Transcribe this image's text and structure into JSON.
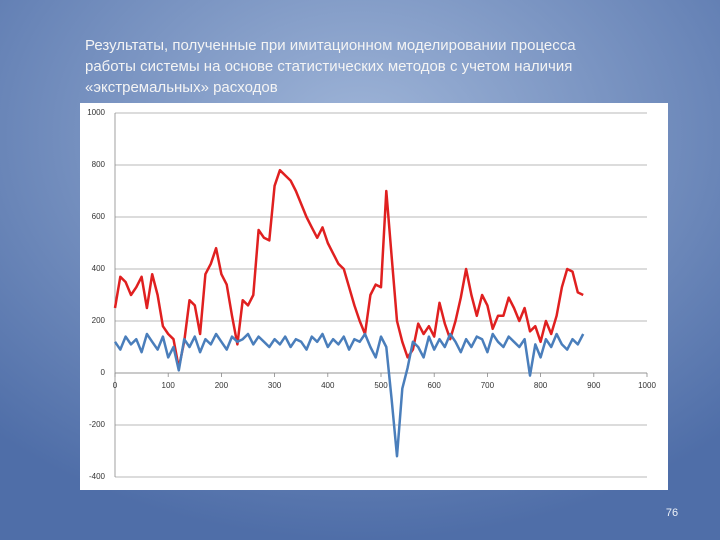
{
  "title": [
    "Результаты, полученные при имитационном моделировании процесса",
    "работы системы на основе статистических методов с учетом наличия",
    "«экстремальных» расходов"
  ],
  "slide_number": "76",
  "chart_data": {
    "type": "line",
    "x": [
      0,
      10,
      20,
      30,
      40,
      50,
      60,
      70,
      80,
      90,
      100,
      110,
      120,
      130,
      140,
      150,
      160,
      170,
      180,
      190,
      200,
      210,
      220,
      230,
      240,
      250,
      260,
      270,
      280,
      290,
      300,
      310,
      320,
      330,
      340,
      350,
      360,
      370,
      380,
      390,
      400,
      410,
      420,
      430,
      440,
      450,
      460,
      470,
      480,
      490,
      500,
      510,
      520,
      530,
      540,
      550,
      560,
      570,
      580,
      590,
      600,
      610,
      620,
      630,
      640,
      650,
      660,
      670,
      680,
      690,
      700,
      710,
      720,
      730,
      740,
      750,
      760,
      770,
      780,
      790,
      800,
      810,
      820,
      830,
      840,
      850,
      860,
      870,
      880
    ],
    "series": [
      {
        "color": "#e02020",
        "values": [
          250,
          370,
          350,
          300,
          330,
          370,
          250,
          380,
          300,
          180,
          150,
          130,
          20,
          120,
          280,
          260,
          150,
          380,
          420,
          480,
          380,
          340,
          220,
          110,
          280,
          260,
          300,
          550,
          520,
          510,
          720,
          780,
          760,
          740,
          700,
          650,
          600,
          560,
          520,
          560,
          500,
          460,
          420,
          400,
          330,
          260,
          200,
          150,
          300,
          340,
          330,
          700,
          450,
          200,
          120,
          60,
          90,
          190,
          150,
          180,
          140,
          270,
          190,
          130,
          200,
          290,
          400,
          300,
          220,
          300,
          260,
          170,
          220,
          220,
          290,
          250,
          200,
          250,
          160,
          180,
          120,
          200,
          150,
          220,
          330,
          400,
          390,
          310,
          300
        ]
      },
      {
        "color": "#4a7ebb",
        "values": [
          120,
          90,
          140,
          110,
          130,
          80,
          150,
          120,
          90,
          140,
          60,
          100,
          10,
          130,
          100,
          140,
          80,
          130,
          110,
          150,
          120,
          90,
          140,
          120,
          130,
          150,
          110,
          140,
          120,
          100,
          130,
          110,
          140,
          100,
          130,
          120,
          90,
          140,
          120,
          150,
          100,
          130,
          110,
          140,
          90,
          130,
          120,
          150,
          100,
          60,
          140,
          100,
          -100,
          -320,
          -60,
          20,
          120,
          100,
          60,
          140,
          90,
          130,
          100,
          150,
          120,
          80,
          130,
          100,
          140,
          130,
          80,
          150,
          120,
          100,
          140,
          120,
          100,
          130,
          -10,
          110,
          60,
          130,
          100,
          150,
          110,
          90,
          130,
          110,
          150
        ]
      }
    ],
    "xlim": [
      0,
      1000
    ],
    "xticks": [
      0,
      100,
      200,
      300,
      400,
      500,
      600,
      700,
      800,
      900,
      1000
    ],
    "ylim": [
      -400,
      1000
    ],
    "yticks": [
      -400,
      -200,
      0,
      200,
      400,
      600,
      800,
      1000
    ],
    "grid": true
  }
}
